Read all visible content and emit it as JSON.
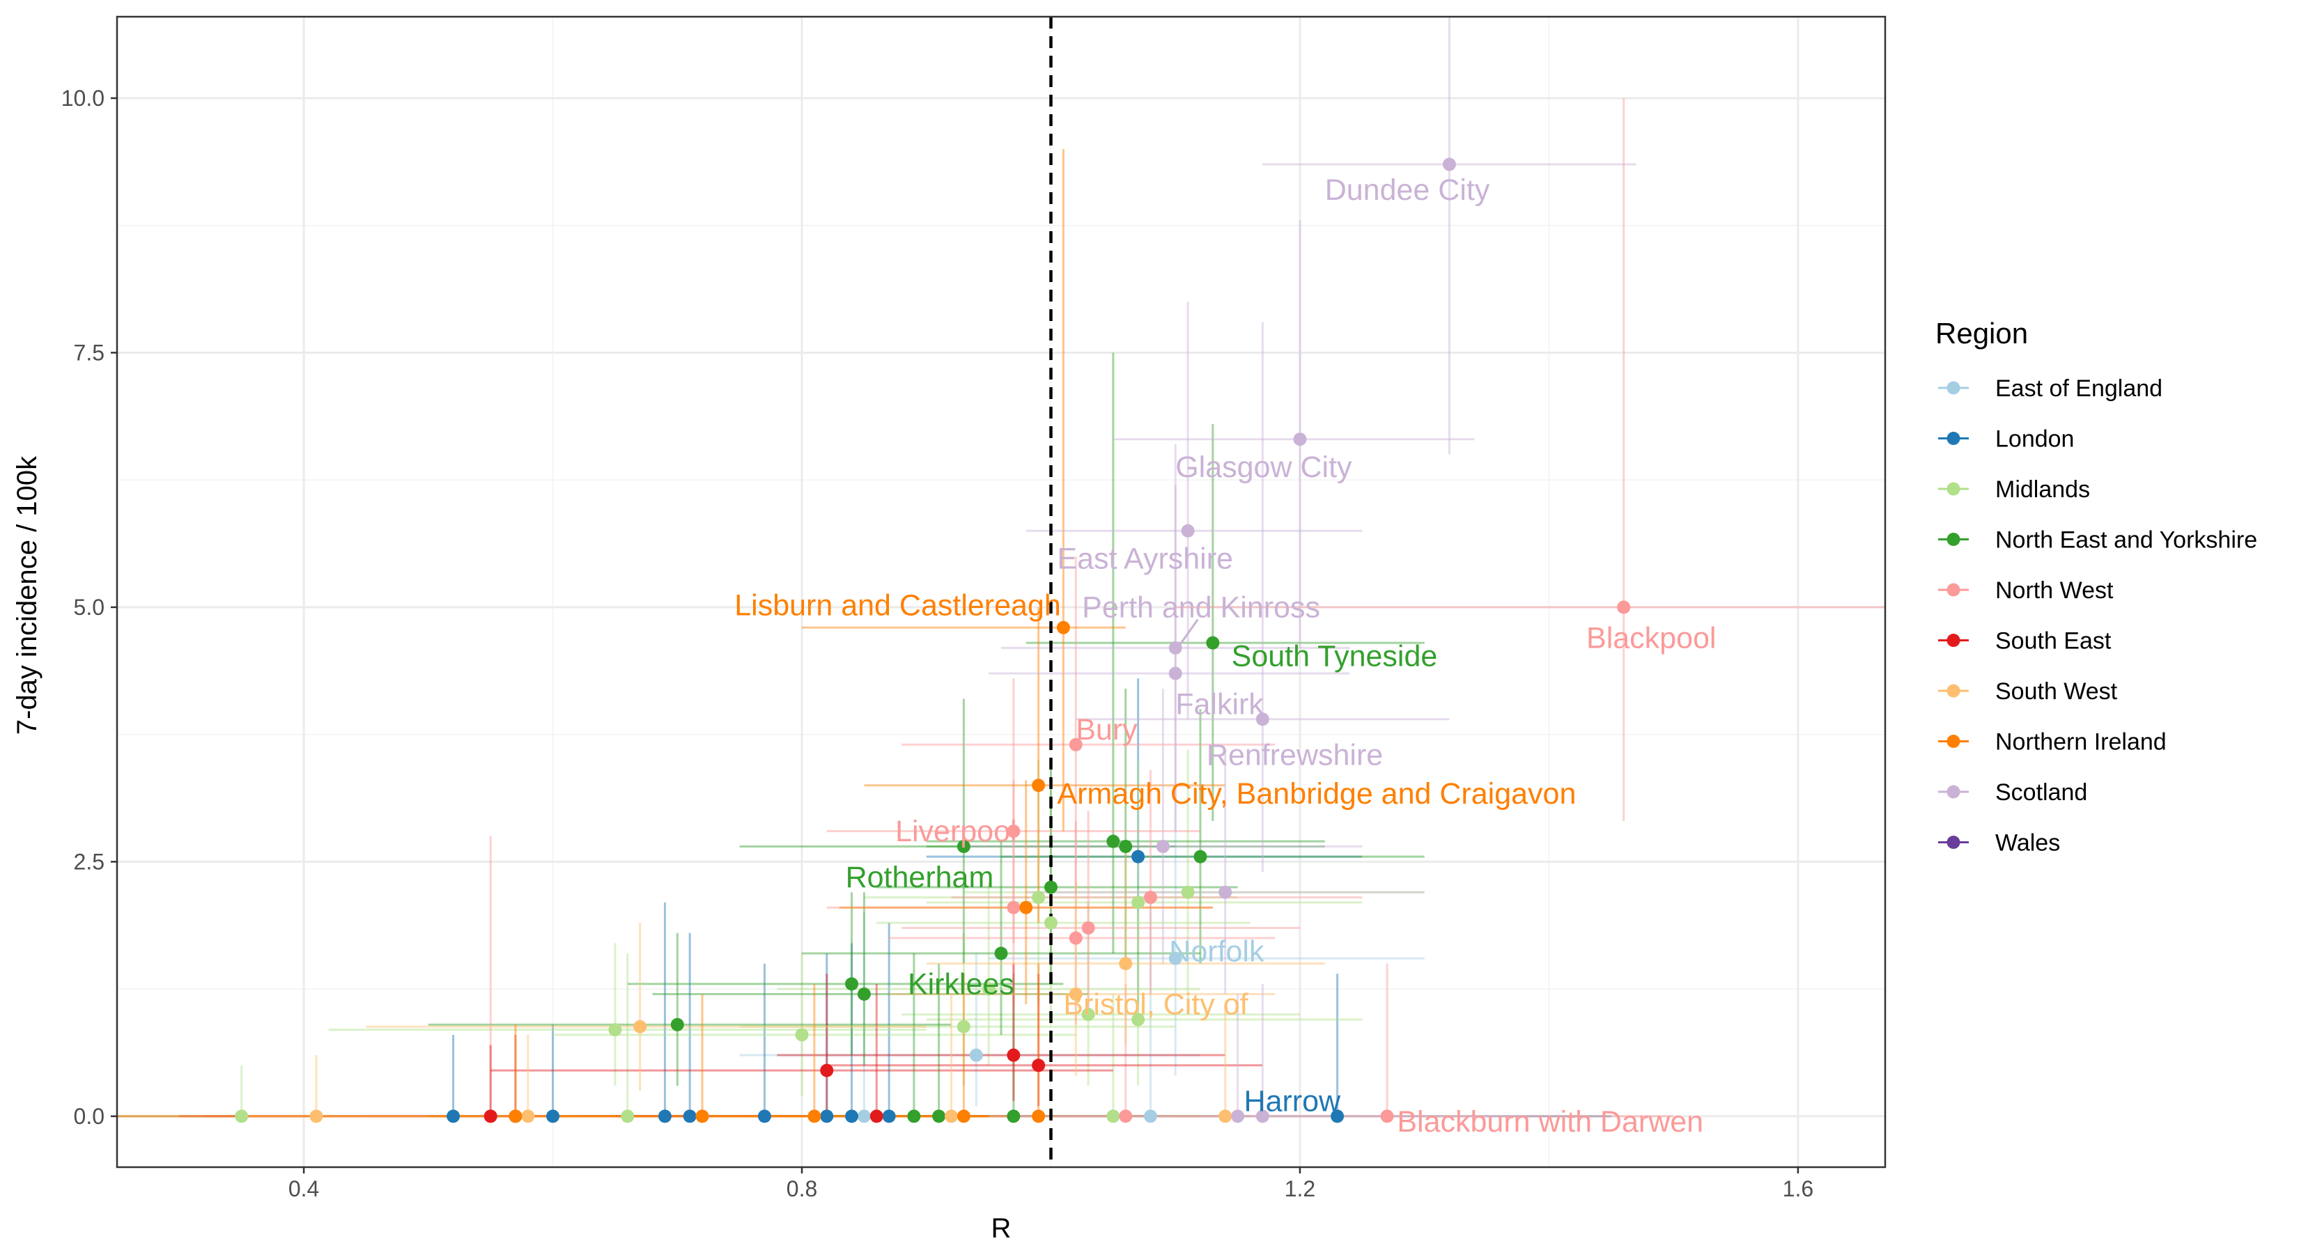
{
  "chart_data": {
    "type": "scatter",
    "xlabel": "R",
    "ylabel": "7-day incidence / 100k",
    "xlim": [
      0.25,
      1.67
    ],
    "ylim": [
      -0.5,
      10.8
    ],
    "xticks": [
      0.4,
      0.8,
      1.2,
      1.6
    ],
    "xtick_labels": [
      "0.4",
      "0.8",
      "1.2",
      "1.6"
    ],
    "yticks": [
      0,
      2.5,
      5,
      7.5,
      10
    ],
    "ytick_labels": [
      "0.0",
      "2.5",
      "5.0",
      "7.5",
      "10.0"
    ],
    "grid": true,
    "reference_line": {
      "x": 1.0,
      "style": "dashed"
    },
    "legend": {
      "title": "Region",
      "placement": "right",
      "entries": [
        {
          "name": "East of England",
          "color": "#A6CEE3"
        },
        {
          "name": "London",
          "color": "#1F78B4"
        },
        {
          "name": "Midlands",
          "color": "#B2DF8A"
        },
        {
          "name": "North East and Yorkshire",
          "color": "#33A02C"
        },
        {
          "name": "North West",
          "color": "#FB9A99"
        },
        {
          "name": "South East",
          "color": "#E31A1C"
        },
        {
          "name": "South West",
          "color": "#FDBF6F"
        },
        {
          "name": "Northern Ireland",
          "color": "#FF7F00"
        },
        {
          "name": "Scotland",
          "color": "#CAB2D6"
        },
        {
          "name": "Wales",
          "color": "#6A3D9A"
        }
      ]
    },
    "series": [
      {
        "name": "East of England",
        "points": [
          {
            "x": 1.1,
            "y": 1.55,
            "xlo": 0.95,
            "xhi": 1.3,
            "ylo": 0.4,
            "yhi": 3.0,
            "label": "Norfolk"
          },
          {
            "x": 0.94,
            "y": 0.6,
            "xlo": 0.75,
            "xhi": 1.12,
            "ylo": 0.1,
            "yhi": 1.6
          },
          {
            "x": 0.85,
            "y": 0,
            "xlo": 0.6,
            "xhi": 1.1,
            "ylo": 0,
            "yhi": 2.0
          },
          {
            "x": 1.08,
            "y": 0,
            "xlo": 0.85,
            "xhi": 1.3,
            "ylo": 0,
            "yhi": 2.2
          }
        ]
      },
      {
        "name": "London",
        "points": [
          {
            "x": 1.23,
            "y": 0,
            "xlo": 1.0,
            "xhi": 1.45,
            "ylo": 0,
            "yhi": 1.4,
            "label": "Harrow"
          },
          {
            "x": 1.07,
            "y": 2.55,
            "xlo": 0.9,
            "xhi": 1.25,
            "ylo": 1.1,
            "yhi": 4.3
          },
          {
            "x": 0.52,
            "y": 0,
            "xlo": 0.25,
            "xhi": 0.8,
            "ylo": 0,
            "yhi": 0.8
          },
          {
            "x": 0.6,
            "y": 0,
            "xlo": 0.3,
            "xhi": 0.9,
            "ylo": 0,
            "yhi": 0.9
          },
          {
            "x": 0.69,
            "y": 0,
            "xlo": 0.45,
            "xhi": 0.95,
            "ylo": 0,
            "yhi": 2.1
          },
          {
            "x": 0.71,
            "y": 0,
            "xlo": 0.45,
            "xhi": 0.98,
            "ylo": 0,
            "yhi": 1.8
          },
          {
            "x": 0.77,
            "y": 0,
            "xlo": 0.5,
            "xhi": 1.02,
            "ylo": 0,
            "yhi": 1.5
          },
          {
            "x": 0.82,
            "y": 0,
            "xlo": 0.6,
            "xhi": 1.05,
            "ylo": 0,
            "yhi": 1.6
          },
          {
            "x": 0.84,
            "y": 0,
            "xlo": 0.62,
            "xhi": 1.08,
            "ylo": 0,
            "yhi": 1.7
          },
          {
            "x": 0.87,
            "y": 0,
            "xlo": 0.65,
            "xhi": 1.1,
            "ylo": 0,
            "yhi": 1.9
          }
        ]
      },
      {
        "name": "Midlands",
        "points": [
          {
            "x": 0.35,
            "y": 0,
            "xlo": 0.25,
            "xhi": 0.6,
            "ylo": 0,
            "yhi": 0.5
          },
          {
            "x": 0.65,
            "y": 0.85,
            "xlo": 0.42,
            "xhi": 0.9,
            "ylo": 0.3,
            "yhi": 1.7
          },
          {
            "x": 0.8,
            "y": 0.8,
            "xlo": 0.6,
            "xhi": 1.02,
            "ylo": 0.2,
            "yhi": 1.6
          },
          {
            "x": 0.93,
            "y": 0.88,
            "xlo": 0.75,
            "xhi": 1.1,
            "ylo": 0.3,
            "yhi": 1.8
          },
          {
            "x": 0.95,
            "y": 1.25,
            "xlo": 0.78,
            "xhi": 1.12,
            "ylo": 0.5,
            "yhi": 2.3
          },
          {
            "x": 0.99,
            "y": 2.15,
            "xlo": 0.85,
            "xhi": 1.15,
            "ylo": 1.1,
            "yhi": 3.5
          },
          {
            "x": 1.0,
            "y": 1.9,
            "xlo": 0.86,
            "xhi": 1.16,
            "ylo": 0.9,
            "yhi": 3.2
          },
          {
            "x": 1.07,
            "y": 2.1,
            "xlo": 0.9,
            "xhi": 1.25,
            "ylo": 1.0,
            "yhi": 3.5
          },
          {
            "x": 1.11,
            "y": 2.2,
            "xlo": 0.93,
            "xhi": 1.3,
            "ylo": 1.1,
            "yhi": 3.6
          },
          {
            "x": 1.07,
            "y": 0.95,
            "xlo": 0.9,
            "xhi": 1.25,
            "ylo": 0.3,
            "yhi": 2.0
          },
          {
            "x": 1.03,
            "y": 1.0,
            "xlo": 0.88,
            "xhi": 1.2,
            "ylo": 0.3,
            "yhi": 2.1
          },
          {
            "x": 0.66,
            "y": 0,
            "xlo": 0.42,
            "xhi": 0.9,
            "ylo": 0,
            "yhi": 1.6
          },
          {
            "x": 1.05,
            "y": 0,
            "xlo": 0.85,
            "xhi": 1.25,
            "ylo": 0,
            "yhi": 1.2
          }
        ]
      },
      {
        "name": "North East and Yorkshire",
        "points": [
          {
            "x": 1.13,
            "y": 4.65,
            "xlo": 0.98,
            "xhi": 1.3,
            "ylo": 2.9,
            "yhi": 6.8,
            "label": "South Tyneside"
          },
          {
            "x": 0.93,
            "y": 2.65,
            "xlo": 0.75,
            "xhi": 1.1,
            "ylo": 1.5,
            "yhi": 4.1,
            "label": "Rotherham"
          },
          {
            "x": 0.85,
            "y": 1.2,
            "xlo": 0.68,
            "xhi": 1.03,
            "ylo": 0.5,
            "yhi": 2.2,
            "label": "Kirklees"
          },
          {
            "x": 0.84,
            "y": 1.3,
            "xlo": 0.66,
            "xhi": 1.01,
            "ylo": 0.6,
            "yhi": 2.2
          },
          {
            "x": 0.7,
            "y": 0.9,
            "xlo": 0.5,
            "xhi": 0.92,
            "ylo": 0.3,
            "yhi": 1.8
          },
          {
            "x": 0.96,
            "y": 1.6,
            "xlo": 0.8,
            "xhi": 1.12,
            "ylo": 0.8,
            "yhi": 2.7
          },
          {
            "x": 1.0,
            "y": 2.25,
            "xlo": 0.86,
            "xhi": 1.15,
            "ylo": 1.3,
            "yhi": 3.5
          },
          {
            "x": 1.05,
            "y": 2.7,
            "xlo": 0.9,
            "xhi": 1.22,
            "ylo": 1.6,
            "yhi": 7.5
          },
          {
            "x": 1.06,
            "y": 2.65,
            "xlo": 0.9,
            "xhi": 1.22,
            "ylo": 1.5,
            "yhi": 4.2
          },
          {
            "x": 1.12,
            "y": 2.55,
            "xlo": 0.96,
            "xhi": 1.3,
            "ylo": 1.5,
            "yhi": 4.0
          },
          {
            "x": 0.89,
            "y": 0,
            "xlo": 0.7,
            "xhi": 1.1,
            "ylo": 0,
            "yhi": 1.6
          },
          {
            "x": 0.91,
            "y": 0,
            "xlo": 0.72,
            "xhi": 1.12,
            "ylo": 0,
            "yhi": 1.5
          },
          {
            "x": 0.97,
            "y": 0,
            "xlo": 0.8,
            "xhi": 1.15,
            "ylo": 0,
            "yhi": 1.4
          }
        ]
      },
      {
        "name": "North West",
        "points": [
          {
            "x": 1.46,
            "y": 5.0,
            "xlo": 1.1,
            "xhi": 1.67,
            "ylo": 2.9,
            "yhi": 10.0,
            "label": "Blackpool"
          },
          {
            "x": 1.02,
            "y": 3.65,
            "xlo": 0.88,
            "xhi": 1.18,
            "ylo": 2.2,
            "yhi": 5.5,
            "label": "Bury"
          },
          {
            "x": 0.97,
            "y": 2.8,
            "xlo": 0.82,
            "xhi": 1.12,
            "ylo": 1.7,
            "yhi": 4.3,
            "label": "Liverpool"
          },
          {
            "x": 1.27,
            "y": 0,
            "xlo": 1.05,
            "xhi": 1.5,
            "ylo": 0,
            "yhi": 1.5,
            "label": "Blackburn with Darwen"
          },
          {
            "x": 0.97,
            "y": 2.05,
            "xlo": 0.82,
            "xhi": 1.13,
            "ylo": 1.1,
            "yhi": 3.3
          },
          {
            "x": 1.02,
            "y": 1.75,
            "xlo": 0.87,
            "xhi": 1.18,
            "ylo": 0.9,
            "yhi": 2.9
          },
          {
            "x": 1.03,
            "y": 1.85,
            "xlo": 0.88,
            "xhi": 1.2,
            "ylo": 1.0,
            "yhi": 3.0
          },
          {
            "x": 1.08,
            "y": 2.15,
            "xlo": 0.92,
            "xhi": 1.25,
            "ylo": 1.2,
            "yhi": 3.4
          },
          {
            "x": 0.55,
            "y": 0,
            "xlo": 0.3,
            "xhi": 0.8,
            "ylo": 0,
            "yhi": 2.75
          },
          {
            "x": 1.06,
            "y": 0,
            "xlo": 0.85,
            "xhi": 1.28,
            "ylo": 0,
            "yhi": 1.3
          }
        ]
      },
      {
        "name": "South East",
        "points": [
          {
            "x": 0.82,
            "y": 0.45,
            "xlo": 0.55,
            "xhi": 1.05,
            "ylo": 0.05,
            "yhi": 1.4
          },
          {
            "x": 0.97,
            "y": 0.6,
            "xlo": 0.78,
            "xhi": 1.14,
            "ylo": 0.15,
            "yhi": 1.5
          },
          {
            "x": 0.99,
            "y": 0.5,
            "xlo": 0.82,
            "xhi": 1.17,
            "ylo": 0.1,
            "yhi": 1.4
          },
          {
            "x": 0.55,
            "y": 0,
            "xlo": 0.3,
            "xhi": 0.8,
            "ylo": 0,
            "yhi": 0.7
          },
          {
            "x": 0.57,
            "y": 0,
            "xlo": 0.32,
            "xhi": 0.82,
            "ylo": 0,
            "yhi": 0.8
          },
          {
            "x": 0.86,
            "y": 0,
            "xlo": 0.65,
            "xhi": 1.08,
            "ylo": 0,
            "yhi": 1.3
          }
        ]
      },
      {
        "name": "South West",
        "points": [
          {
            "x": 1.02,
            "y": 1.2,
            "xlo": 0.87,
            "xhi": 1.18,
            "ylo": 0.4,
            "yhi": 2.3,
            "label": "Bristol, City of"
          },
          {
            "x": 0.67,
            "y": 0.88,
            "xlo": 0.45,
            "xhi": 0.9,
            "ylo": 0.25,
            "yhi": 1.9
          },
          {
            "x": 1.06,
            "y": 1.5,
            "xlo": 0.9,
            "xhi": 1.22,
            "ylo": 0.7,
            "yhi": 2.6
          },
          {
            "x": 0.41,
            "y": 0,
            "xlo": 0.25,
            "xhi": 0.65,
            "ylo": 0,
            "yhi": 0.6
          },
          {
            "x": 0.58,
            "y": 0,
            "xlo": 0.35,
            "xhi": 0.82,
            "ylo": 0,
            "yhi": 0.8
          },
          {
            "x": 0.92,
            "y": 0,
            "xlo": 0.72,
            "xhi": 1.12,
            "ylo": 0,
            "yhi": 1.2
          },
          {
            "x": 1.14,
            "y": 0,
            "xlo": 0.95,
            "xhi": 1.35,
            "ylo": 0,
            "yhi": 1.1
          }
        ]
      },
      {
        "name": "Northern Ireland",
        "points": [
          {
            "x": 1.01,
            "y": 4.8,
            "xlo": 0.8,
            "xhi": 1.06,
            "ylo": 2.8,
            "yhi": 9.5,
            "label": "Lisburn and Castlereagh"
          },
          {
            "x": 0.99,
            "y": 3.25,
            "xlo": 0.85,
            "xhi": 1.14,
            "ylo": 1.9,
            "yhi": 5.0,
            "label": "Armagh City, Banbridge and Craigavon"
          },
          {
            "x": 0.98,
            "y": 2.05,
            "xlo": 0.83,
            "xhi": 1.13,
            "ylo": 1.1,
            "yhi": 3.3
          },
          {
            "x": 0.57,
            "y": 0,
            "xlo": 0.25,
            "xhi": 0.85,
            "ylo": 0,
            "yhi": 0.9
          },
          {
            "x": 0.72,
            "y": 0,
            "xlo": 0.5,
            "xhi": 0.95,
            "ylo": 0,
            "yhi": 1.2
          },
          {
            "x": 0.81,
            "y": 0,
            "xlo": 0.6,
            "xhi": 1.02,
            "ylo": 0,
            "yhi": 1.3
          },
          {
            "x": 0.93,
            "y": 0,
            "xlo": 0.75,
            "xhi": 1.12,
            "ylo": 0,
            "yhi": 1.4
          },
          {
            "x": 0.99,
            "y": 0,
            "xlo": 0.82,
            "xhi": 1.16,
            "ylo": 0,
            "yhi": 1.5
          }
        ]
      },
      {
        "name": "Scotland",
        "points": [
          {
            "x": 1.32,
            "y": 9.35,
            "xlo": 1.17,
            "xhi": 1.47,
            "ylo": 6.5,
            "yhi": 10.8,
            "label": "Dundee City"
          },
          {
            "x": 1.2,
            "y": 6.65,
            "xlo": 1.05,
            "xhi": 1.34,
            "ylo": 4.6,
            "yhi": 8.8,
            "label": "Glasgow City"
          },
          {
            "x": 1.11,
            "y": 5.75,
            "xlo": 0.98,
            "xhi": 1.25,
            "ylo": 3.9,
            "yhi": 8.0,
            "label": "East Ayrshire"
          },
          {
            "x": 1.1,
            "y": 4.6,
            "xlo": 0.96,
            "xhi": 1.24,
            "ylo": 3.0,
            "yhi": 6.6,
            "label": "Perth and Kinross"
          },
          {
            "x": 1.1,
            "y": 4.35,
            "xlo": 0.95,
            "xhi": 1.24,
            "ylo": 2.8,
            "yhi": 6.2,
            "label": "Falkirk"
          },
          {
            "x": 1.17,
            "y": 3.9,
            "xlo": 1.02,
            "xhi": 1.32,
            "ylo": 2.4,
            "yhi": 7.8,
            "label": "Renfrewshire"
          },
          {
            "x": 1.14,
            "y": 2.2,
            "xlo": 0.98,
            "xhi": 1.3,
            "ylo": 1.2,
            "yhi": 3.6
          },
          {
            "x": 1.09,
            "y": 2.65,
            "xlo": 0.93,
            "xhi": 1.25,
            "ylo": 1.5,
            "yhi": 4.2
          },
          {
            "x": 1.15,
            "y": 0,
            "xlo": 0.95,
            "xhi": 1.35,
            "ylo": 0,
            "yhi": 1.2
          },
          {
            "x": 1.17,
            "y": 0,
            "xlo": 0.97,
            "xhi": 1.38,
            "ylo": 0,
            "yhi": 1.3
          }
        ]
      },
      {
        "name": "Wales",
        "points": []
      }
    ]
  }
}
